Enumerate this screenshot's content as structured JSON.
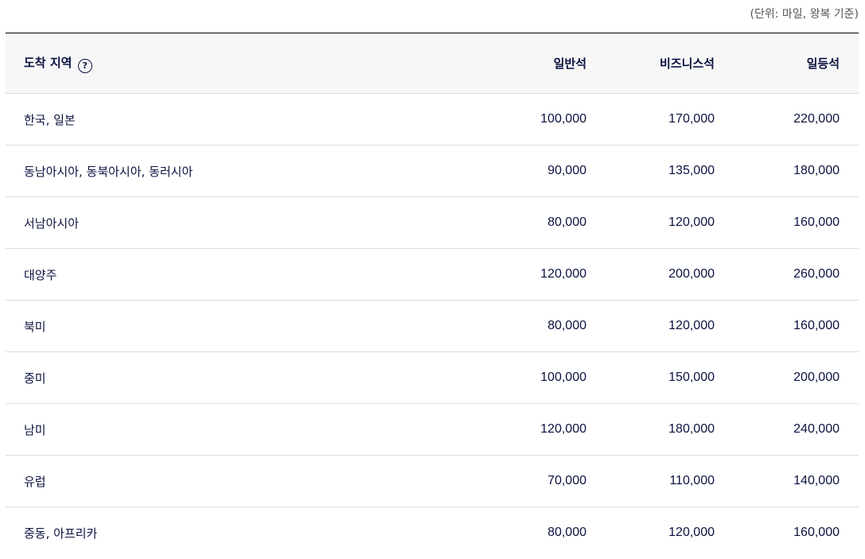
{
  "unit_note": "(단위: 마일, 왕복 기준)",
  "table": {
    "headers": {
      "region": "도착 지역",
      "help_icon": "question-circle-icon",
      "economy": "일반석",
      "business": "비즈니스석",
      "first": "일등석"
    },
    "rows": [
      {
        "region": "한국, 일본",
        "economy": "100,000",
        "business": "170,000",
        "first": "220,000"
      },
      {
        "region": "동남아시아, 동북아시아, 동러시아",
        "economy": "90,000",
        "business": "135,000",
        "first": "180,000"
      },
      {
        "region": "서남아시아",
        "economy": "80,000",
        "business": "120,000",
        "first": "160,000"
      },
      {
        "region": "대양주",
        "economy": "120,000",
        "business": "200,000",
        "first": "260,000"
      },
      {
        "region": "북미",
        "economy": "80,000",
        "business": "120,000",
        "first": "160,000"
      },
      {
        "region": "중미",
        "economy": "100,000",
        "business": "150,000",
        "first": "200,000"
      },
      {
        "region": "남미",
        "economy": "120,000",
        "business": "180,000",
        "first": "240,000"
      },
      {
        "region": "유럽",
        "economy": "70,000",
        "business": "110,000",
        "first": "140,000"
      },
      {
        "region": "중동, 아프리카",
        "economy": "80,000",
        "business": "120,000",
        "first": "160,000"
      }
    ]
  }
}
